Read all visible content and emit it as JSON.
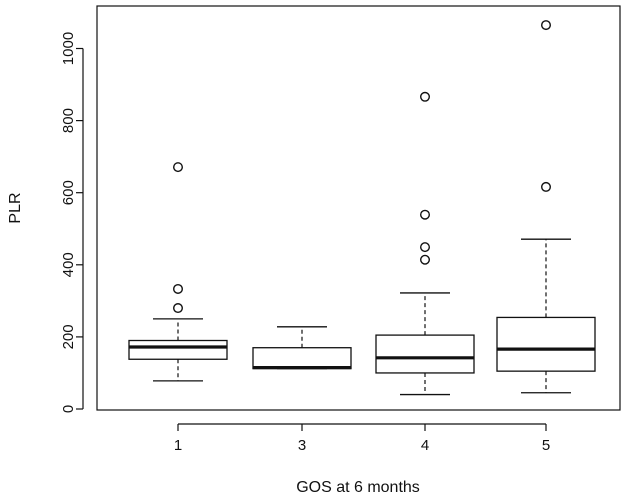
{
  "chart_data": {
    "type": "box",
    "xlabel": "GOS at 6 months",
    "ylabel": "PLR",
    "ylim": [
      0,
      1070
    ],
    "yticks": [
      0,
      200,
      400,
      600,
      800,
      1000
    ],
    "categories": [
      "1",
      "3",
      "4",
      "5"
    ],
    "boxes": [
      {
        "category": "1",
        "whisker_low": 78,
        "q1": 138,
        "median": 172,
        "q3": 190,
        "whisker_high": 250,
        "outliers": [
          280,
          333,
          671
        ]
      },
      {
        "category": "3",
        "whisker_low": 112,
        "q1": 112,
        "median": 115,
        "q3": 170,
        "whisker_high": 228,
        "outliers": []
      },
      {
        "category": "4",
        "whisker_low": 40,
        "q1": 100,
        "median": 142,
        "q3": 205,
        "whisker_high": 322,
        "outliers": [
          414,
          449,
          539,
          866
        ]
      },
      {
        "category": "5",
        "whisker_low": 45,
        "q1": 105,
        "median": 166,
        "q3": 254,
        "whisker_high": 471,
        "outliers": [
          616,
          1065
        ]
      }
    ],
    "grid": false,
    "legend": "none"
  }
}
